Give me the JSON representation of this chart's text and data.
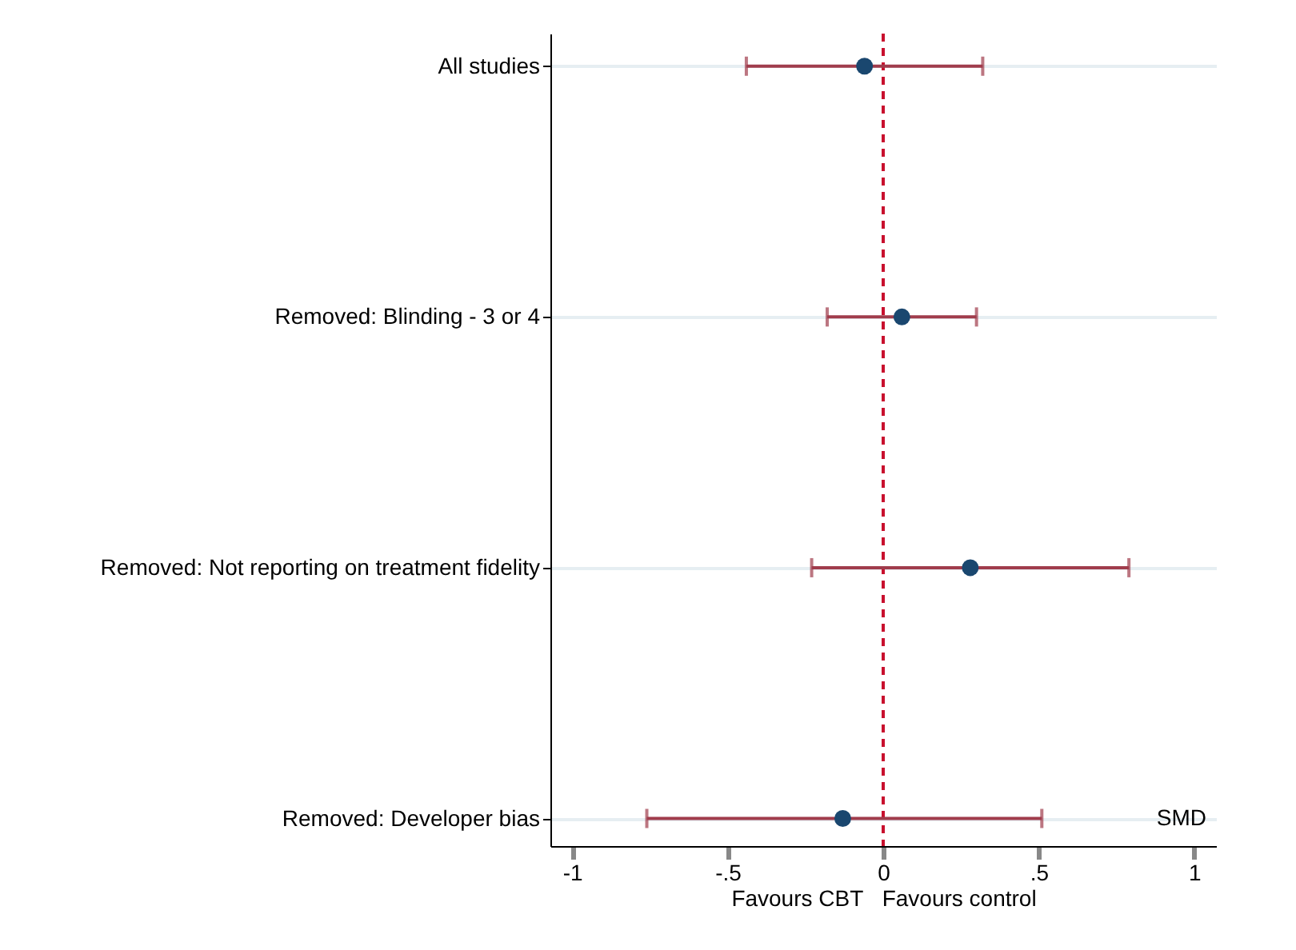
{
  "chart_data": {
    "type": "scatter",
    "orientation": "horizontal",
    "xlabel": "Favours CBT   Favours control",
    "categories": [
      "All studies",
      "Removed: Blinding - 3 or 4",
      "Removed: Not reporting on treatment fidelity",
      "Removed: Developer bias"
    ],
    "series": [
      {
        "color": "#1a476f",
        "values": [
          -0.06,
          0.06,
          0.28,
          -0.13
        ],
        "errors": [
          [
            -0.44,
            0.32
          ],
          [
            -0.18,
            0.3
          ],
          [
            -0.23,
            0.79
          ],
          [
            -0.76,
            0.51
          ]
        ]
      }
    ],
    "xlim": [
      -1.07,
      1.07
    ],
    "xticks": [
      {
        "value": -1,
        "label": "-1"
      },
      {
        "value": -0.5,
        "label": "-.5"
      },
      0,
      {
        "value": 0.5,
        "label": ".5"
      },
      1
    ],
    "ref_lines": [
      {
        "axis": "x",
        "value": 0,
        "color": "#c8102e",
        "line_style": "dashed"
      }
    ],
    "annotations": [
      "SMD"
    ],
    "grid": "y",
    "marker": "circle"
  }
}
